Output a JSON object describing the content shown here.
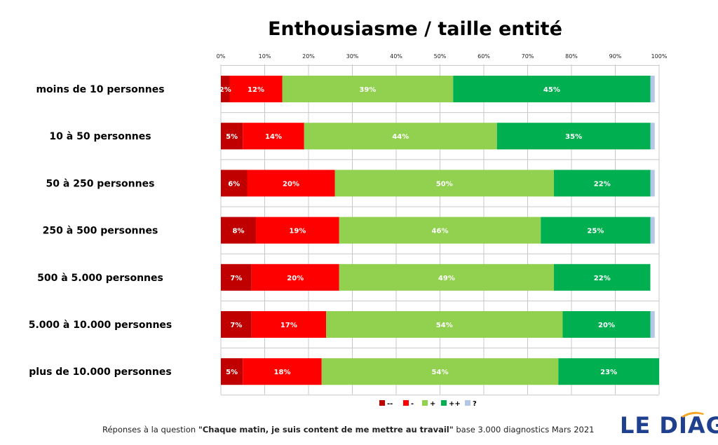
{
  "chart_data": {
    "type": "bar",
    "orientation": "horizontal-stacked-100",
    "title": "Enthousiasme / taille entité",
    "categories": [
      "moins de 10 personnes",
      "10 à 50 personnes",
      "50 à 250 personnes",
      "250 à 500 personnes",
      "500 à 5.000 personnes",
      "5.000 à 10.000 personnes",
      "plus de 10.000 personnes"
    ],
    "series": [
      {
        "name": "--",
        "color": "#c00000",
        "values": [
          2,
          5,
          6,
          8,
          7,
          7,
          5
        ]
      },
      {
        "name": "-",
        "color": "#ff0000",
        "values": [
          12,
          14,
          20,
          19,
          20,
          17,
          18
        ]
      },
      {
        "name": "+",
        "color": "#92d050",
        "values": [
          39,
          44,
          50,
          46,
          49,
          54,
          54
        ]
      },
      {
        "name": "++",
        "color": "#00b050",
        "values": [
          45,
          35,
          22,
          25,
          22,
          20,
          23
        ]
      },
      {
        "name": "?",
        "color": "#b4c7e7",
        "values": [
          1,
          1,
          1,
          1,
          0,
          1,
          0
        ]
      }
    ],
    "labels": [
      [
        "2%",
        "12%",
        "39%",
        "45%",
        ""
      ],
      [
        "5%",
        "14%",
        "44%",
        "35%",
        ""
      ],
      [
        "6%",
        "20%",
        "50%",
        "22%",
        ""
      ],
      [
        "8%",
        "19%",
        "46%",
        "25%",
        ""
      ],
      [
        "7%",
        "20%",
        "49%",
        "22%",
        ""
      ],
      [
        "7%",
        "17%",
        "54%",
        "20%",
        ""
      ],
      [
        "5%",
        "18%",
        "54%",
        "23%",
        ""
      ]
    ],
    "xticks": [
      "0%",
      "10%",
      "20%",
      "30%",
      "40%",
      "50%",
      "60%",
      "70%",
      "80%",
      "90%",
      "100%"
    ],
    "xlim": [
      0,
      100
    ],
    "grid": true,
    "legend_position": "bottom"
  },
  "footer": {
    "prefix": "Réponses à la question ",
    "question": "\"Chaque matin, je suis content de me mettre au travail\"",
    "suffix": "  base 3.000 diagnostics Mars 2021"
  },
  "logo": {
    "text": "LE DIAG",
    "accent_color": "#f5a623"
  }
}
